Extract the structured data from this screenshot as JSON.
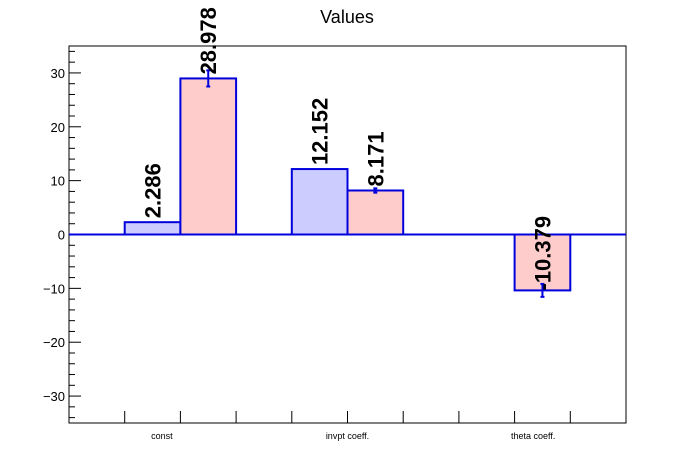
{
  "chart_data": {
    "type": "bar",
    "title": "Values",
    "xlabel": "",
    "ylabel": "",
    "ylim": [
      -35,
      35
    ],
    "yticks": [
      -30,
      -20,
      -10,
      0,
      10,
      20,
      30
    ],
    "ytick_labels": [
      "−30",
      "−20",
      "−10",
      "0",
      "10",
      "20",
      "30"
    ],
    "categories": [
      "const",
      "invpt coeff.",
      "theta coeff."
    ],
    "series": [
      {
        "values": [
          2.286,
          12.152,
          null
        ],
        "labels": [
          "2.286",
          "12.152",
          ""
        ],
        "errors": [
          0,
          0,
          0
        ],
        "color": "#ccccff"
      },
      {
        "values": [
          28.978,
          8.171,
          -10.379
        ],
        "labels": [
          "28.978",
          "8.171",
          "-10.379"
        ],
        "errors": [
          1.5,
          0.4,
          1.2
        ],
        "color": "#ffcccc"
      }
    ],
    "edge_color": "#0000dd",
    "grid": false,
    "legend": "none"
  }
}
